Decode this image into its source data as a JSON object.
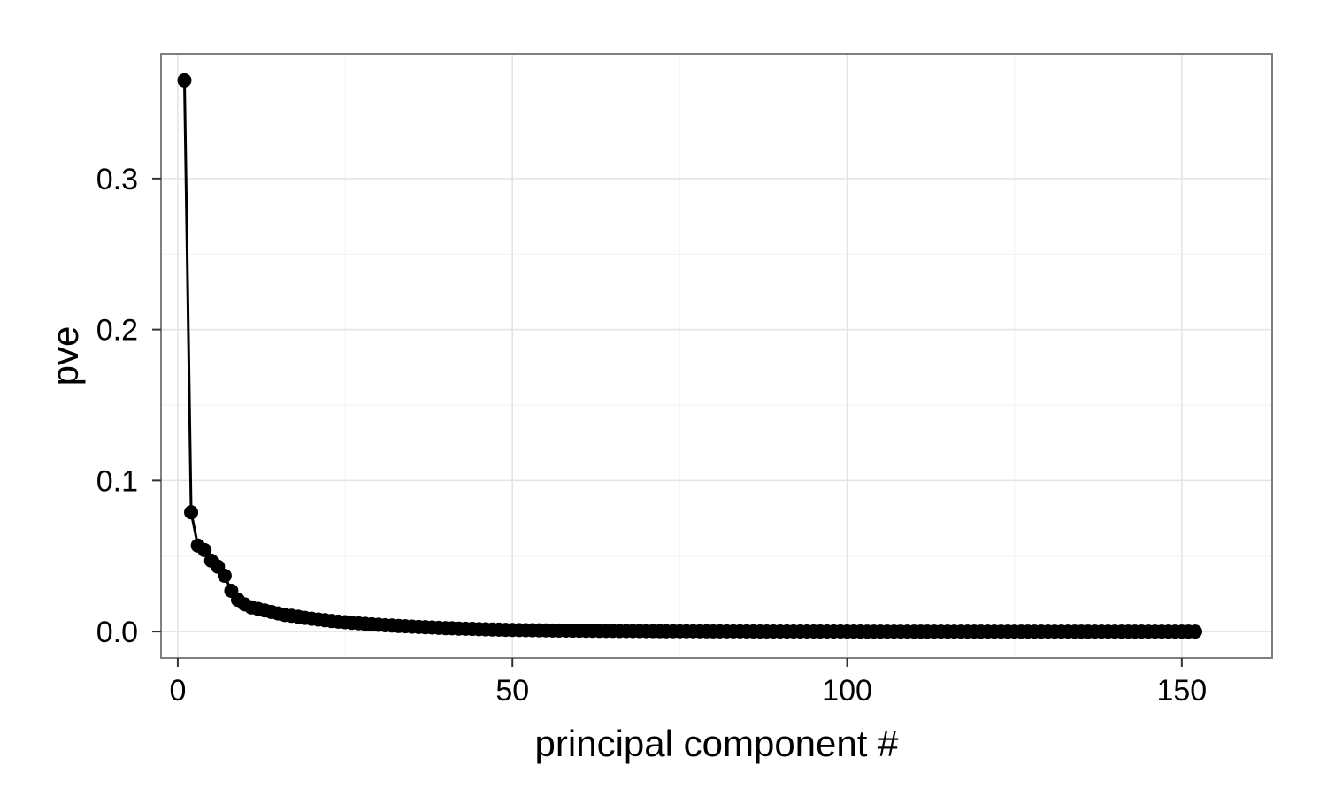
{
  "chart_data": {
    "type": "line",
    "title": "",
    "xlabel": "principal component #",
    "ylabel": "pve",
    "xlim": [
      -2.5,
      163.5
    ],
    "ylim": [
      -0.0175,
      0.3825
    ],
    "x_ticks": [
      {
        "value": 0,
        "label": "0"
      },
      {
        "value": 50,
        "label": "50"
      },
      {
        "value": 100,
        "label": "100"
      },
      {
        "value": 150,
        "label": "150"
      }
    ],
    "y_ticks": [
      {
        "value": 0.0,
        "label": "0.0"
      },
      {
        "value": 0.1,
        "label": "0.1"
      },
      {
        "value": 0.2,
        "label": "0.2"
      },
      {
        "value": 0.3,
        "label": "0.3"
      }
    ],
    "grid": true,
    "legend": "none",
    "colors": {
      "line": "#000000",
      "point": "#000000",
      "panel_border": "#7f7f7f",
      "grid_major": "#e3e3e3",
      "grid_minor": "#f2f2f2",
      "background": "#ffffff"
    },
    "series": [
      {
        "x": [
          1,
          2,
          3,
          4,
          5,
          6,
          7,
          8,
          9,
          10,
          11,
          12,
          13,
          14,
          15,
          16,
          17,
          18,
          19,
          20,
          21,
          22,
          23,
          24,
          25,
          26,
          27,
          28,
          29,
          30,
          31,
          32,
          33,
          34,
          35,
          36,
          37,
          38,
          39,
          40,
          41,
          42,
          43,
          44,
          45,
          46,
          47,
          48,
          49,
          50,
          51,
          52,
          53,
          54,
          55,
          56,
          57,
          58,
          59,
          60,
          61,
          62,
          63,
          64,
          65,
          66,
          67,
          68,
          69,
          70,
          71,
          72,
          73,
          74,
          75,
          76,
          77,
          78,
          79,
          80,
          81,
          82,
          83,
          84,
          85,
          86,
          87,
          88,
          89,
          90,
          91,
          92,
          93,
          94,
          95,
          96,
          97,
          98,
          99,
          100,
          101,
          102,
          103,
          104,
          105,
          106,
          107,
          108,
          109,
          110,
          111,
          112,
          113,
          114,
          115,
          116,
          117,
          118,
          119,
          120,
          121,
          122,
          123,
          124,
          125,
          126,
          127,
          128,
          129,
          130,
          131,
          132,
          133,
          134,
          135,
          136,
          137,
          138,
          139,
          140,
          141,
          142,
          143,
          144,
          145,
          146,
          147,
          148,
          149,
          150,
          151,
          152
        ],
        "y": [
          0.365,
          0.079,
          0.057,
          0.054,
          0.047,
          0.043,
          0.037,
          0.027,
          0.021,
          0.018,
          0.016,
          0.015,
          0.014,
          0.013,
          0.012,
          0.011,
          0.0105,
          0.0098,
          0.0091,
          0.0085,
          0.008,
          0.0075,
          0.007,
          0.0066,
          0.0062,
          0.0058,
          0.0055,
          0.0051,
          0.0048,
          0.0045,
          0.0042,
          0.004,
          0.0037,
          0.0035,
          0.0033,
          0.0031,
          0.0029,
          0.0027,
          0.0025,
          0.0023,
          0.0022,
          0.002,
          0.0019,
          0.0018,
          0.0016,
          0.0015,
          0.0014,
          0.0013,
          0.0012,
          0.0011,
          0.00104,
          0.00097,
          0.00091,
          0.00085,
          0.0008,
          0.00075,
          0.0007,
          0.00066,
          0.00062,
          0.00058,
          0.00054,
          0.00051,
          0.00048,
          0.00045,
          0.00042,
          0.0004,
          0.00037,
          0.00035,
          0.00033,
          0.00031,
          0.00029,
          0.00027,
          0.00025,
          0.00024,
          0.00022,
          0.00021,
          0.0002,
          0.00019,
          0.00018,
          0.00017,
          0.00016,
          0.00015,
          0.00014,
          0.00013,
          0.00012,
          0.00011,
          0.0001,
          0.0001,
          9e-05,
          9e-05,
          8e-05,
          8e-05,
          7e-05,
          7e-05,
          6e-05,
          6e-05,
          5e-05,
          5e-05,
          5e-05,
          4e-05,
          4e-05,
          4e-05,
          3e-05,
          3e-05,
          3e-05,
          3e-05,
          2e-05,
          2e-05,
          2e-05,
          2e-05,
          2e-05,
          2e-05,
          1e-05,
          1e-05,
          1e-05,
          1e-05,
          1e-05,
          1e-05,
          1e-05,
          1e-05,
          1e-05,
          1e-05,
          1e-05,
          1e-05,
          1e-05,
          1e-05,
          1e-05,
          1e-05,
          1e-05,
          1e-05,
          0,
          0,
          0,
          0,
          0,
          0,
          0,
          0,
          0,
          0,
          0,
          0,
          0,
          0,
          0,
          0,
          0,
          0,
          0,
          0,
          0,
          0
        ]
      }
    ]
  }
}
